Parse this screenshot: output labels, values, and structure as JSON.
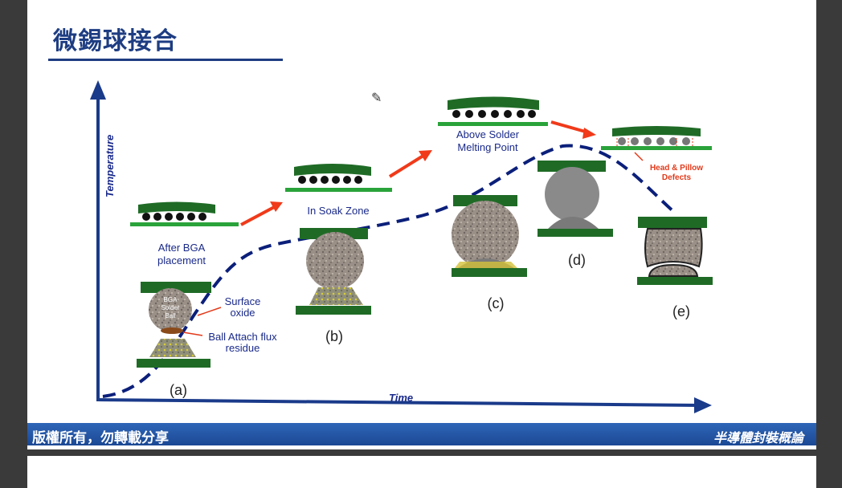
{
  "slide": {
    "title": "微錫球接合",
    "footer_left": "版權所有，勿轉載分享",
    "footer_right": "半導體封裝概論"
  },
  "diagram": {
    "axis_y_label": "Temperature",
    "axis_x_label": "Time",
    "stage_a_caption": "After BGA placement",
    "stage_a_line1": "After BGA",
    "stage_a_line2": "placement",
    "stage_b_caption": "In Soak Zone",
    "stage_c_caption_line1": "Above Solder",
    "stage_c_caption_line2": "Melting Point",
    "defect_line1": "Head & Pillow",
    "defect_line2": "Defects",
    "ball_text_1": "BGA",
    "ball_text_2": "Solder",
    "ball_text_3": "Ball",
    "surface_oxide_1": "Surface",
    "surface_oxide_2": "oxide",
    "flux_residue_1": "Ball Attach flux",
    "flux_residue_2": "residue",
    "label_a": "(a)",
    "label_b": "(b)",
    "label_c": "(c)",
    "label_d": "(d)",
    "label_e": "(e)"
  },
  "colors": {
    "title": "#1e3d82",
    "footer": "#1f4d9c",
    "board_green": "#1f6b26",
    "pad_green": "#2aa33a",
    "curve_navy": "#0b1f7a",
    "arrow_red": "#f03a1a",
    "label_navy": "#1a2a8a",
    "defect_red": "#e23a1a"
  },
  "icons": [
    "pencil-icon"
  ]
}
